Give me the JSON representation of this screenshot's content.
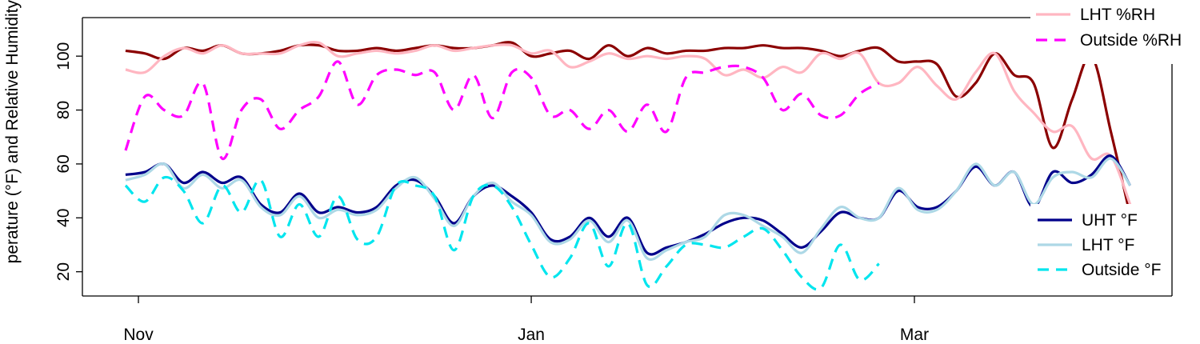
{
  "chart_data": {
    "type": "line",
    "y_label": "perature (°F) and Relative Humidity",
    "x": [
      -2,
      1,
      4,
      7,
      10,
      13,
      16,
      19,
      22,
      25,
      28,
      31,
      34,
      37,
      40,
      43,
      46,
      49,
      52,
      55,
      58,
      61,
      64,
      67,
      70,
      73,
      76,
      79,
      82,
      85,
      88,
      91,
      94,
      97,
      100,
      103,
      106,
      109,
      112,
      115,
      118,
      121,
      124,
      127,
      130,
      133,
      136,
      139,
      142,
      145,
      148,
      151,
      154
    ],
    "xlim": [
      -8.7,
      160.5
    ],
    "xticks": [
      {
        "value": 0,
        "label": "Nov"
      },
      {
        "value": 61,
        "label": "Jan"
      },
      {
        "value": 120.5,
        "label": "Mar"
      }
    ],
    "ylim": [
      11,
      114.3
    ],
    "yticks": [
      20,
      40,
      60,
      80,
      100
    ],
    "series": [
      {
        "color": "#8b0000",
        "dash": false,
        "values": [
          102,
          101,
          99,
          103,
          102,
          104,
          101,
          101,
          102,
          104,
          104,
          102,
          102,
          103,
          102,
          103,
          104,
          103,
          103,
          104,
          105,
          100,
          101,
          102,
          99,
          104,
          100,
          103,
          101,
          102,
          102,
          103,
          103,
          104,
          103,
          103,
          102,
          100,
          102,
          103,
          98,
          98,
          97,
          85,
          90,
          101,
          93,
          90,
          66,
          84,
          100,
          72,
          41
        ]
      },
      {
        "name": "LHT %RH",
        "color": "#ffb6c1",
        "dash": false,
        "values": [
          95,
          94,
          100,
          103,
          101,
          104,
          101,
          101,
          101,
          104,
          105,
          100,
          101,
          102,
          101,
          102,
          104,
          102,
          103,
          104,
          104,
          101,
          102,
          96,
          98,
          101,
          99,
          100,
          99,
          100,
          99,
          93,
          95,
          92,
          96,
          94,
          101,
          99,
          101,
          90,
          90,
          96,
          89,
          84,
          94,
          101,
          87,
          79,
          72,
          74,
          62,
          63,
          45
        ]
      },
      {
        "name": "Outside %RH",
        "color": "#ff00ff",
        "dash": true,
        "values": [
          65,
          85,
          80,
          78,
          90,
          62,
          80,
          84,
          73,
          80,
          85,
          98,
          82,
          93,
          95,
          93,
          94,
          80,
          93,
          77,
          94,
          92,
          78,
          80,
          73,
          80,
          72,
          82,
          72,
          92,
          94,
          96,
          96,
          92,
          80,
          86,
          78,
          78,
          86,
          90,
          null,
          null,
          null,
          null,
          null,
          null,
          null,
          null,
          null,
          null,
          null,
          null,
          null
        ]
      },
      {
        "name": "UHT °F",
        "color": "#00008b",
        "dash": false,
        "values": [
          56,
          57,
          60,
          53,
          57,
          53,
          55,
          45,
          42,
          49,
          42,
          44,
          42,
          44,
          52,
          54,
          48,
          38,
          48,
          52,
          48,
          42,
          32,
          33,
          40,
          33,
          40,
          27,
          29,
          31,
          34,
          38,
          40,
          39,
          34,
          29,
          35,
          42,
          40,
          40,
          50,
          44,
          44,
          50,
          59,
          52,
          57,
          44,
          57,
          53,
          56,
          63,
          52
        ]
      },
      {
        "name": "LHT °F",
        "color": "#add8e6",
        "dash": false,
        "values": [
          54,
          56,
          60,
          51,
          56,
          51,
          54,
          44,
          41,
          48,
          40,
          43,
          41,
          43,
          51,
          55,
          47,
          37,
          48,
          53,
          46,
          41,
          31,
          32,
          39,
          31,
          39,
          25,
          28,
          31,
          33,
          41,
          41,
          37,
          33,
          27,
          36,
          44,
          40,
          40,
          51,
          43,
          43,
          50,
          60,
          52,
          57,
          45,
          55,
          57,
          55,
          62,
          52
        ]
      },
      {
        "name": "Outside °F",
        "color": "#00e5ee",
        "dash": true,
        "values": [
          52,
          46,
          55,
          50,
          38,
          52,
          42,
          54,
          33,
          45,
          33,
          48,
          32,
          33,
          52,
          52,
          48,
          28,
          48,
          52,
          44,
          30,
          18,
          25,
          38,
          22,
          38,
          15,
          22,
          30,
          30,
          29,
          33,
          36,
          28,
          18,
          14,
          30,
          17,
          23,
          null,
          null,
          null,
          null,
          null,
          null,
          null,
          null,
          null,
          null,
          null,
          null,
          null
        ]
      }
    ]
  }
}
